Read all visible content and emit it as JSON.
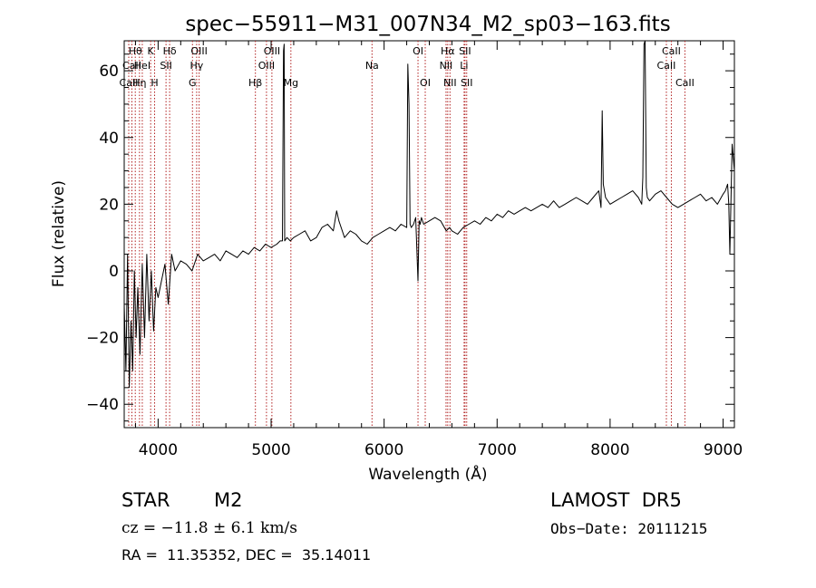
{
  "chart_data": {
    "type": "line",
    "title": "spec−55911−M31_007N34_M2_sp03−163.fits",
    "xlabel": "Wavelength (Å)",
    "ylabel": "Flux (relative)",
    "xlim": [
      3700,
      9100
    ],
    "ylim": [
      -47,
      69
    ],
    "xticks": [
      4000,
      5000,
      6000,
      7000,
      8000,
      9000
    ],
    "yticks": [
      -40,
      -20,
      0,
      20,
      40,
      60
    ],
    "ytick_labels": [
      "−40",
      "−20",
      "0",
      "20",
      "40",
      "60"
    ],
    "grid": false,
    "series": [
      {
        "color": "#000000",
        "x": [
          3700,
          3715,
          3730,
          3745,
          3760,
          3775,
          3790,
          3805,
          3820,
          3840,
          3860,
          3880,
          3900,
          3920,
          3940,
          3960,
          3980,
          4000,
          4030,
          4060,
          4090,
          4120,
          4150,
          4200,
          4250,
          4300,
          4350,
          4400,
          4450,
          4500,
          4550,
          4600,
          4650,
          4700,
          4750,
          4800,
          4850,
          4900,
          4950,
          5000,
          5050,
          5080,
          5100,
          5110,
          5115,
          5120,
          5140,
          5170,
          5200,
          5250,
          5300,
          5350,
          5400,
          5450,
          5500,
          5550,
          5580,
          5600,
          5650,
          5700,
          5750,
          5800,
          5850,
          5900,
          5950,
          6000,
          6050,
          6100,
          6150,
          6200,
          6210,
          6220,
          6230,
          6240,
          6260,
          6280,
          6300,
          6310,
          6320,
          6330,
          6350,
          6400,
          6450,
          6500,
          6550,
          6580,
          6600,
          6650,
          6700,
          6750,
          6800,
          6850,
          6900,
          6950,
          7000,
          7050,
          7100,
          7150,
          7200,
          7250,
          7300,
          7350,
          7400,
          7450,
          7500,
          7550,
          7600,
          7650,
          7700,
          7750,
          7800,
          7850,
          7900,
          7920,
          7930,
          7940,
          7960,
          8000,
          8050,
          8100,
          8150,
          8200,
          8250,
          8280,
          8290,
          8300,
          8310,
          8320,
          8330,
          8350,
          8400,
          8450,
          8500,
          8550,
          8600,
          8650,
          8700,
          8750,
          8800,
          8850,
          8900,
          8950,
          9000,
          9020,
          9040,
          9050,
          9060,
          9080,
          9100
        ],
        "y": [
          -10,
          -30,
          5,
          -35,
          -15,
          -30,
          0,
          -20,
          -5,
          -25,
          2,
          -20,
          5,
          -15,
          0,
          -18,
          -5,
          -8,
          -3,
          2,
          -10,
          5,
          0,
          3,
          2,
          0,
          5,
          3,
          4,
          5,
          3,
          6,
          5,
          4,
          6,
          5,
          7,
          6,
          8,
          7,
          8,
          9,
          9,
          66,
          68,
          9,
          10,
          9,
          10,
          11,
          12,
          9,
          10,
          13,
          14,
          12,
          18,
          15,
          10,
          12,
          11,
          9,
          8,
          10,
          11,
          12,
          13,
          12,
          14,
          13,
          62,
          50,
          14,
          13,
          14,
          16,
          -3,
          15,
          14,
          16,
          14,
          15,
          16,
          15,
          12,
          13,
          12,
          11,
          13,
          14,
          15,
          14,
          16,
          15,
          17,
          16,
          18,
          17,
          18,
          19,
          18,
          19,
          20,
          19,
          21,
          19,
          20,
          21,
          22,
          21,
          20,
          22,
          24,
          19,
          48,
          26,
          22,
          20,
          21,
          22,
          23,
          24,
          22,
          20,
          28,
          68,
          69,
          25,
          22,
          21,
          23,
          24,
          22,
          20,
          19,
          20,
          21,
          22,
          23,
          21,
          22,
          20,
          23,
          24,
          26,
          20,
          5,
          38,
          30
        ]
      }
    ],
    "line_labels": [
      {
        "label": "Hθ",
        "x": 3798,
        "row": 0
      },
      {
        "label": "CaII",
        "x": 3768,
        "row": 1
      },
      {
        "label": "CaII",
        "x": 3740,
        "row": 2
      },
      {
        "label": "HeI",
        "x": 3860,
        "row": 1
      },
      {
        "label": "Hη",
        "x": 3835,
        "row": 2
      },
      {
        "label": "K",
        "x": 3934,
        "row": 0
      },
      {
        "label": "H",
        "x": 3969,
        "row": 2
      },
      {
        "label": "SII",
        "x": 4070,
        "row": 1
      },
      {
        "label": "Hδ",
        "x": 4102,
        "row": 0
      },
      {
        "label": "OIII",
        "x": 4363,
        "row": 0
      },
      {
        "label": "Hγ",
        "x": 4341,
        "row": 1
      },
      {
        "label": "G",
        "x": 4304,
        "row": 2
      },
      {
        "label": "Hβ",
        "x": 4861,
        "row": 2
      },
      {
        "label": "OIII",
        "x": 5007,
        "row": 0
      },
      {
        "label": "OIII",
        "x": 4959,
        "row": 1
      },
      {
        "label": "Mg",
        "x": 5175,
        "row": 2
      },
      {
        "label": "Na",
        "x": 5893,
        "row": 1
      },
      {
        "label": "OI",
        "x": 6300,
        "row": 0
      },
      {
        "label": "OI",
        "x": 6364,
        "row": 2
      },
      {
        "label": "Hα",
        "x": 6563,
        "row": 0
      },
      {
        "label": "NII",
        "x": 6548,
        "row": 1
      },
      {
        "label": "NII",
        "x": 6583,
        "row": 2
      },
      {
        "label": "SII",
        "x": 6716,
        "row": 0
      },
      {
        "label": "Li",
        "x": 6708,
        "row": 1
      },
      {
        "label": "SII",
        "x": 6731,
        "row": 2
      },
      {
        "label": "CaII",
        "x": 8542,
        "row": 0
      },
      {
        "label": "CaII",
        "x": 8498,
        "row": 1
      },
      {
        "label": "CaII",
        "x": 8662,
        "row": 2
      }
    ],
    "line_marker_color": "#b22222"
  },
  "info": {
    "object_class": "STAR",
    "subclass": "M2",
    "survey": "LAMOST  DR5",
    "cz": "cz = −11.8 ± 6.1 km/s",
    "obs_date": "Obs−Date: 20111215",
    "coords": "RA =  11.35352, DEC =  35.14011"
  }
}
